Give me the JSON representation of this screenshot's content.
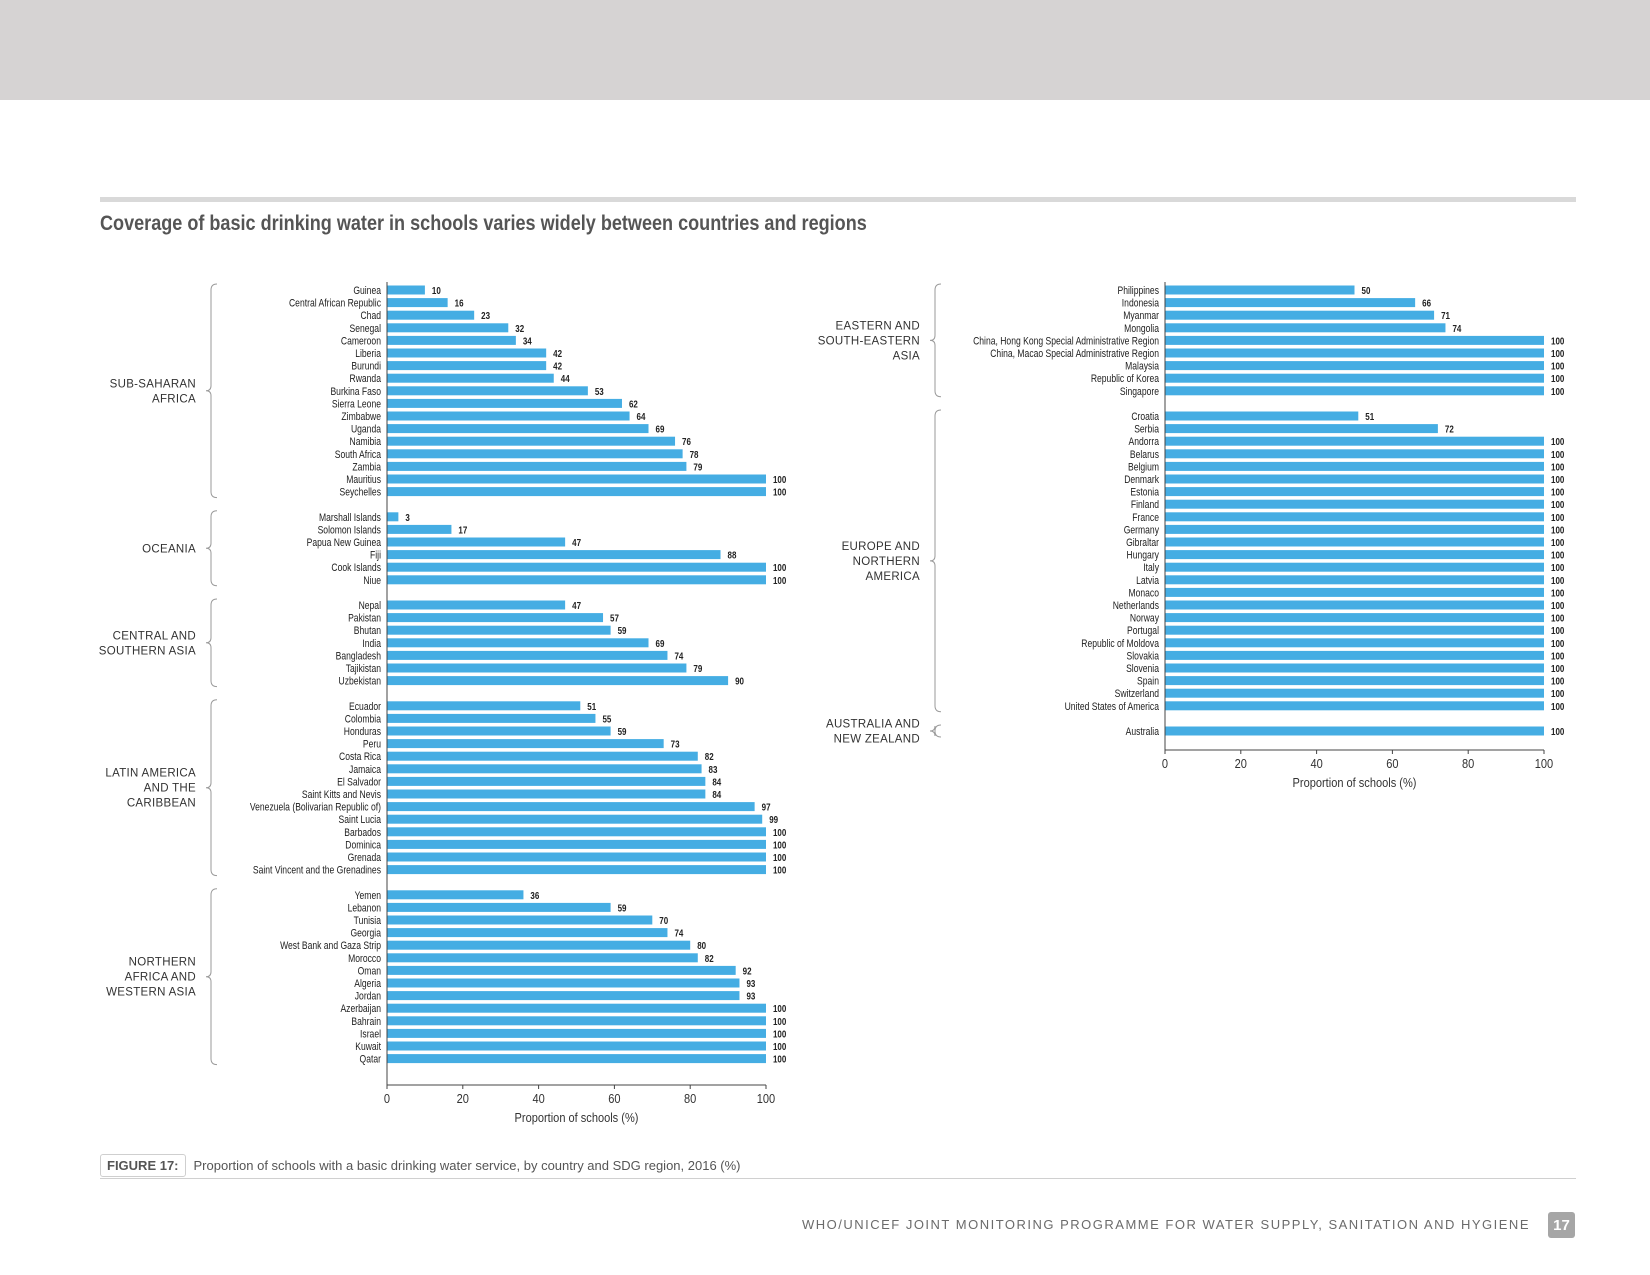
{
  "header": {
    "title": "Coverage of basic drinking water in schools varies widely between countries and regions"
  },
  "colors": {
    "bar": "#45ade3",
    "text": "#222222",
    "muted": "#555555"
  },
  "chart_data": [
    {
      "type": "bar",
      "orientation": "horizontal",
      "xlabel": "Proportion of schools (%)",
      "xlim": [
        0,
        100
      ],
      "xticks": [
        0,
        20,
        40,
        60,
        80,
        100
      ],
      "groups": [
        {
          "region": "SUB-SAHARAN AFRICA",
          "region_lines": [
            "SUB-SAHARAN",
            "AFRICA"
          ],
          "categories": [
            "Guinea",
            "Central African Republic",
            "Chad",
            "Senegal",
            "Cameroon",
            "Liberia",
            "Burundi",
            "Rwanda",
            "Burkina Faso",
            "Sierra Leone",
            "Zimbabwe",
            "Uganda",
            "Namibia",
            "South Africa",
            "Zambia",
            "Mauritius",
            "Seychelles"
          ],
          "values": [
            10,
            16,
            23,
            32,
            34,
            42,
            42,
            44,
            53,
            62,
            64,
            69,
            76,
            78,
            79,
            100,
            100
          ]
        },
        {
          "region": "OCEANIA",
          "region_lines": [
            "OCEANIA"
          ],
          "categories": [
            "Marshall Islands",
            "Solomon Islands",
            "Papua New Guinea",
            "Fiji",
            "Cook Islands",
            "Niue"
          ],
          "values": [
            3,
            17,
            47,
            88,
            100,
            100
          ]
        },
        {
          "region": "CENTRAL AND SOUTHERN ASIA",
          "region_lines": [
            "CENTRAL AND",
            "SOUTHERN ASIA"
          ],
          "categories": [
            "Nepal",
            "Pakistan",
            "Bhutan",
            "India",
            "Bangladesh",
            "Tajikistan",
            "Uzbekistan"
          ],
          "values": [
            47,
            57,
            59,
            69,
            74,
            79,
            90
          ]
        },
        {
          "region": "LATIN AMERICA AND THE CARIBBEAN",
          "region_lines": [
            "LATIN AMERICA",
            "AND THE",
            "CARIBBEAN"
          ],
          "categories": [
            "Ecuador",
            "Colombia",
            "Honduras",
            "Peru",
            "Costa Rica",
            "Jamaica",
            "El Salvador",
            "Saint Kitts and Nevis",
            "Venezuela (Bolivarian Republic of)",
            "Saint Lucia",
            "Barbados",
            "Dominica",
            "Grenada",
            "Saint Vincent and the Grenadines"
          ],
          "values": [
            51,
            55,
            59,
            73,
            82,
            83,
            84,
            84,
            97,
            99,
            100,
            100,
            100,
            100
          ]
        },
        {
          "region": "NORTHERN AFRICA AND WESTERN ASIA",
          "region_lines": [
            "NORTHERN",
            "AFRICA AND",
            "WESTERN ASIA"
          ],
          "categories": [
            "Yemen",
            "Lebanon",
            "Tunisia",
            "Georgia",
            "West Bank and Gaza Strip",
            "Morocco",
            "Oman",
            "Algeria",
            "Jordan",
            "Azerbaijan",
            "Bahrain",
            "Israel",
            "Kuwait",
            "Qatar"
          ],
          "values": [
            36,
            59,
            70,
            74,
            80,
            82,
            92,
            93,
            93,
            100,
            100,
            100,
            100,
            100
          ]
        }
      ]
    },
    {
      "type": "bar",
      "orientation": "horizontal",
      "xlabel": "Proportion of schools (%)",
      "xlim": [
        0,
        100
      ],
      "xticks": [
        0,
        20,
        40,
        60,
        80,
        100
      ],
      "groups": [
        {
          "region": "EASTERN AND SOUTH-EASTERN ASIA",
          "region_lines": [
            "EASTERN AND",
            "SOUTH-EASTERN",
            "ASIA"
          ],
          "categories": [
            "Philippines",
            "Indonesia",
            "Myanmar",
            "Mongolia",
            "China, Hong Kong Special Administrative Region",
            "China, Macao Special Administrative Region",
            "Malaysia",
            "Republic of Korea",
            "Singapore"
          ],
          "values": [
            50,
            66,
            71,
            74,
            100,
            100,
            100,
            100,
            100
          ]
        },
        {
          "region": "EUROPE AND NORTHERN AMERICA",
          "region_lines": [
            "EUROPE AND",
            "NORTHERN",
            "AMERICA"
          ],
          "categories": [
            "Croatia",
            "Serbia",
            "Andorra",
            "Belarus",
            "Belgium",
            "Denmark",
            "Estonia",
            "Finland",
            "France",
            "Germany",
            "Gibraltar",
            "Hungary",
            "Italy",
            "Latvia",
            "Monaco",
            "Netherlands",
            "Norway",
            "Portugal",
            "Republic of Moldova",
            "Slovakia",
            "Slovenia",
            "Spain",
            "Switzerland",
            "United States of America"
          ],
          "values": [
            51,
            72,
            100,
            100,
            100,
            100,
            100,
            100,
            100,
            100,
            100,
            100,
            100,
            100,
            100,
            100,
            100,
            100,
            100,
            100,
            100,
            100,
            100,
            100
          ]
        },
        {
          "region": "AUSTRALIA AND NEW ZEALAND",
          "region_lines": [
            "AUSTRALIA AND",
            "NEW ZEALAND"
          ],
          "categories": [
            "Australia"
          ],
          "values": [
            100
          ]
        }
      ]
    }
  ],
  "caption": {
    "figure_label": "FIGURE 17:",
    "text": "Proportion of schools with a basic drinking water service, by country and SDG region, 2016 (%)"
  },
  "footer": {
    "publisher": "WHO/UNICEF JOINT MONITORING PROGRAMME FOR WATER SUPPLY, SANITATION AND HYGIENE",
    "page_number": "17"
  }
}
